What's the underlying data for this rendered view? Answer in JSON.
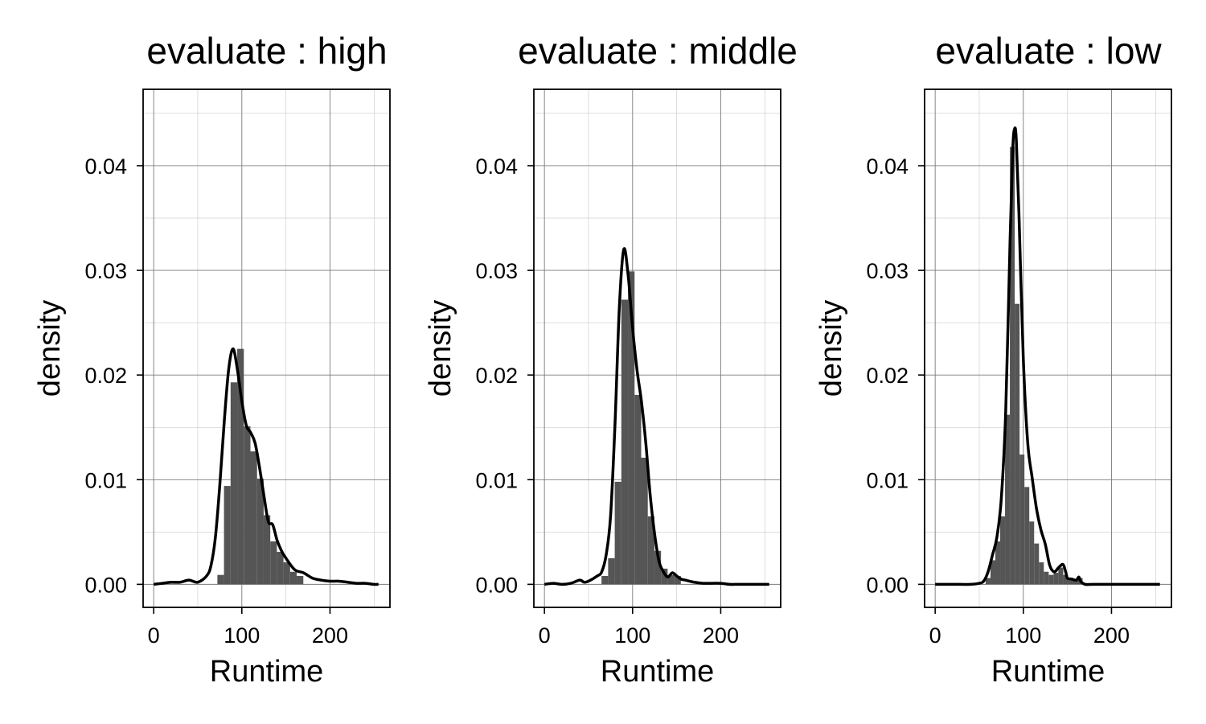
{
  "chart_data": [
    {
      "type": "bar",
      "overlay": "line",
      "title": "evaluate : high",
      "xlabel": "Runtime",
      "ylabel": "density",
      "xlim": [
        -12,
        268
      ],
      "ylim": [
        -0.0022,
        0.0473
      ],
      "xticks": [
        0,
        100,
        200
      ],
      "xtick_labels": [
        "0",
        "100",
        "200"
      ],
      "yticks": [
        0,
        0.01,
        0.02,
        0.03,
        0.04
      ],
      "ytick_labels": [
        "0.00",
        "0.01",
        "0.02",
        "0.03",
        "0.04"
      ],
      "grid": true,
      "bins": {
        "width": 7.5,
        "x": [
          76,
          83.5,
          91,
          98.5,
          106,
          113.5,
          121,
          128.5,
          136,
          143.5,
          151,
          158.5,
          166
        ],
        "values": [
          0.0009,
          0.0094,
          0.0193,
          0.0225,
          0.0151,
          0.0127,
          0.0101,
          0.0066,
          0.0041,
          0.0031,
          0.0021,
          0.0012,
          0.0008
        ]
      },
      "density_curve": {
        "x": [
          0,
          10,
          20,
          30,
          40,
          50,
          60,
          65,
          70,
          75,
          80,
          85,
          90,
          95,
          100,
          105,
          110,
          115,
          120,
          125,
          130,
          135,
          140,
          145,
          150,
          160,
          170,
          180,
          190,
          200,
          210,
          220,
          230,
          240,
          250,
          255
        ],
        "values": [
          0.0,
          0.0001,
          0.0002,
          0.0002,
          0.0004,
          0.0002,
          0.0008,
          0.0018,
          0.0045,
          0.0095,
          0.0155,
          0.0205,
          0.0225,
          0.0205,
          0.0175,
          0.0152,
          0.0145,
          0.0135,
          0.0112,
          0.0085,
          0.006,
          0.0057,
          0.0042,
          0.0032,
          0.0025,
          0.0014,
          0.0011,
          0.0006,
          0.0004,
          0.0003,
          0.0003,
          0.0002,
          0.0001,
          0.0001,
          0.0,
          0.0
        ]
      }
    },
    {
      "type": "bar",
      "overlay": "line",
      "title": "evaluate : middle",
      "xlabel": "Runtime",
      "ylabel": "density",
      "xlim": [
        -12,
        268
      ],
      "ylim": [
        -0.0022,
        0.0473
      ],
      "xticks": [
        0,
        100,
        200
      ],
      "xtick_labels": [
        "0",
        "100",
        "200"
      ],
      "yticks": [
        0,
        0.01,
        0.02,
        0.03,
        0.04
      ],
      "ytick_labels": [
        "0.00",
        "0.01",
        "0.02",
        "0.03",
        "0.04"
      ],
      "grid": true,
      "bins": {
        "width": 7.5,
        "x": [
          68.5,
          76,
          83.5,
          91,
          98.5,
          106,
          113.5,
          121,
          128.5,
          136,
          143.5,
          151
        ],
        "values": [
          0.0008,
          0.0025,
          0.0098,
          0.0272,
          0.0299,
          0.0181,
          0.0121,
          0.0065,
          0.0032,
          0.0015,
          0.0009,
          0.0008
        ]
      },
      "density_curve": {
        "x": [
          0,
          10,
          20,
          30,
          40,
          45,
          50,
          60,
          65,
          70,
          75,
          80,
          85,
          90,
          95,
          100,
          105,
          110,
          115,
          120,
          125,
          130,
          135,
          140,
          145,
          150,
          155,
          160,
          170,
          180,
          190,
          200,
          210,
          220,
          230,
          240,
          255
        ],
        "values": [
          0.0,
          0.0001,
          0.0,
          0.0001,
          0.0004,
          0.0002,
          0.0003,
          0.0008,
          0.0012,
          0.0028,
          0.0065,
          0.0152,
          0.0265,
          0.032,
          0.0295,
          0.0245,
          0.0205,
          0.0175,
          0.0135,
          0.0085,
          0.0048,
          0.0022,
          0.0012,
          0.0007,
          0.0011,
          0.0008,
          0.0005,
          0.0004,
          0.0002,
          0.0001,
          0.0001,
          0.0001,
          0.0,
          0.0,
          0.0,
          0.0,
          0.0
        ]
      }
    },
    {
      "type": "bar",
      "overlay": "line",
      "title": "evaluate : low",
      "xlabel": "Runtime",
      "ylabel": "density",
      "xlim": [
        -12,
        268
      ],
      "ylim": [
        -0.0022,
        0.0473
      ],
      "xticks": [
        0,
        100,
        200
      ],
      "xtick_labels": [
        "0",
        "100",
        "200"
      ],
      "yticks": [
        0,
        0.01,
        0.02,
        0.03,
        0.04
      ],
      "ytick_labels": [
        "0.00",
        "0.01",
        "0.02",
        "0.03",
        "0.04"
      ],
      "grid": true,
      "bins": {
        "width": 5.5,
        "x": [
          60,
          65.5,
          71,
          76.5,
          82,
          87.5,
          93,
          98.5,
          104,
          109.5,
          115,
          120.5,
          126,
          131.5,
          137,
          142.5,
          148,
          153.5,
          159,
          164.5
        ],
        "values": [
          0.0006,
          0.0023,
          0.0041,
          0.0065,
          0.0162,
          0.0418,
          0.0268,
          0.0124,
          0.0093,
          0.006,
          0.0039,
          0.0021,
          0.0012,
          0.0009,
          0.0011,
          0.0016,
          0.0009,
          0.0004,
          0.0004,
          0.0006
        ]
      },
      "density_curve": {
        "x": [
          0,
          20,
          40,
          50,
          55,
          60,
          65,
          70,
          75,
          80,
          85,
          88,
          90,
          92,
          95,
          100,
          105,
          110,
          115,
          120,
          125,
          130,
          135,
          140,
          145,
          148,
          150,
          155,
          160,
          163,
          165,
          170,
          180,
          200,
          220,
          240,
          255
        ],
        "values": [
          0.0,
          0.0,
          0.0,
          0.0001,
          0.0003,
          0.0012,
          0.0028,
          0.0045,
          0.0082,
          0.0165,
          0.033,
          0.0415,
          0.0435,
          0.0425,
          0.0355,
          0.0215,
          0.0135,
          0.0102,
          0.0072,
          0.0052,
          0.0038,
          0.0018,
          0.0012,
          0.0016,
          0.0019,
          0.0012,
          0.0006,
          0.0005,
          0.0004,
          0.0007,
          0.0003,
          0.0,
          0.0,
          0.0,
          0.0,
          0.0,
          0.0
        ]
      }
    }
  ]
}
